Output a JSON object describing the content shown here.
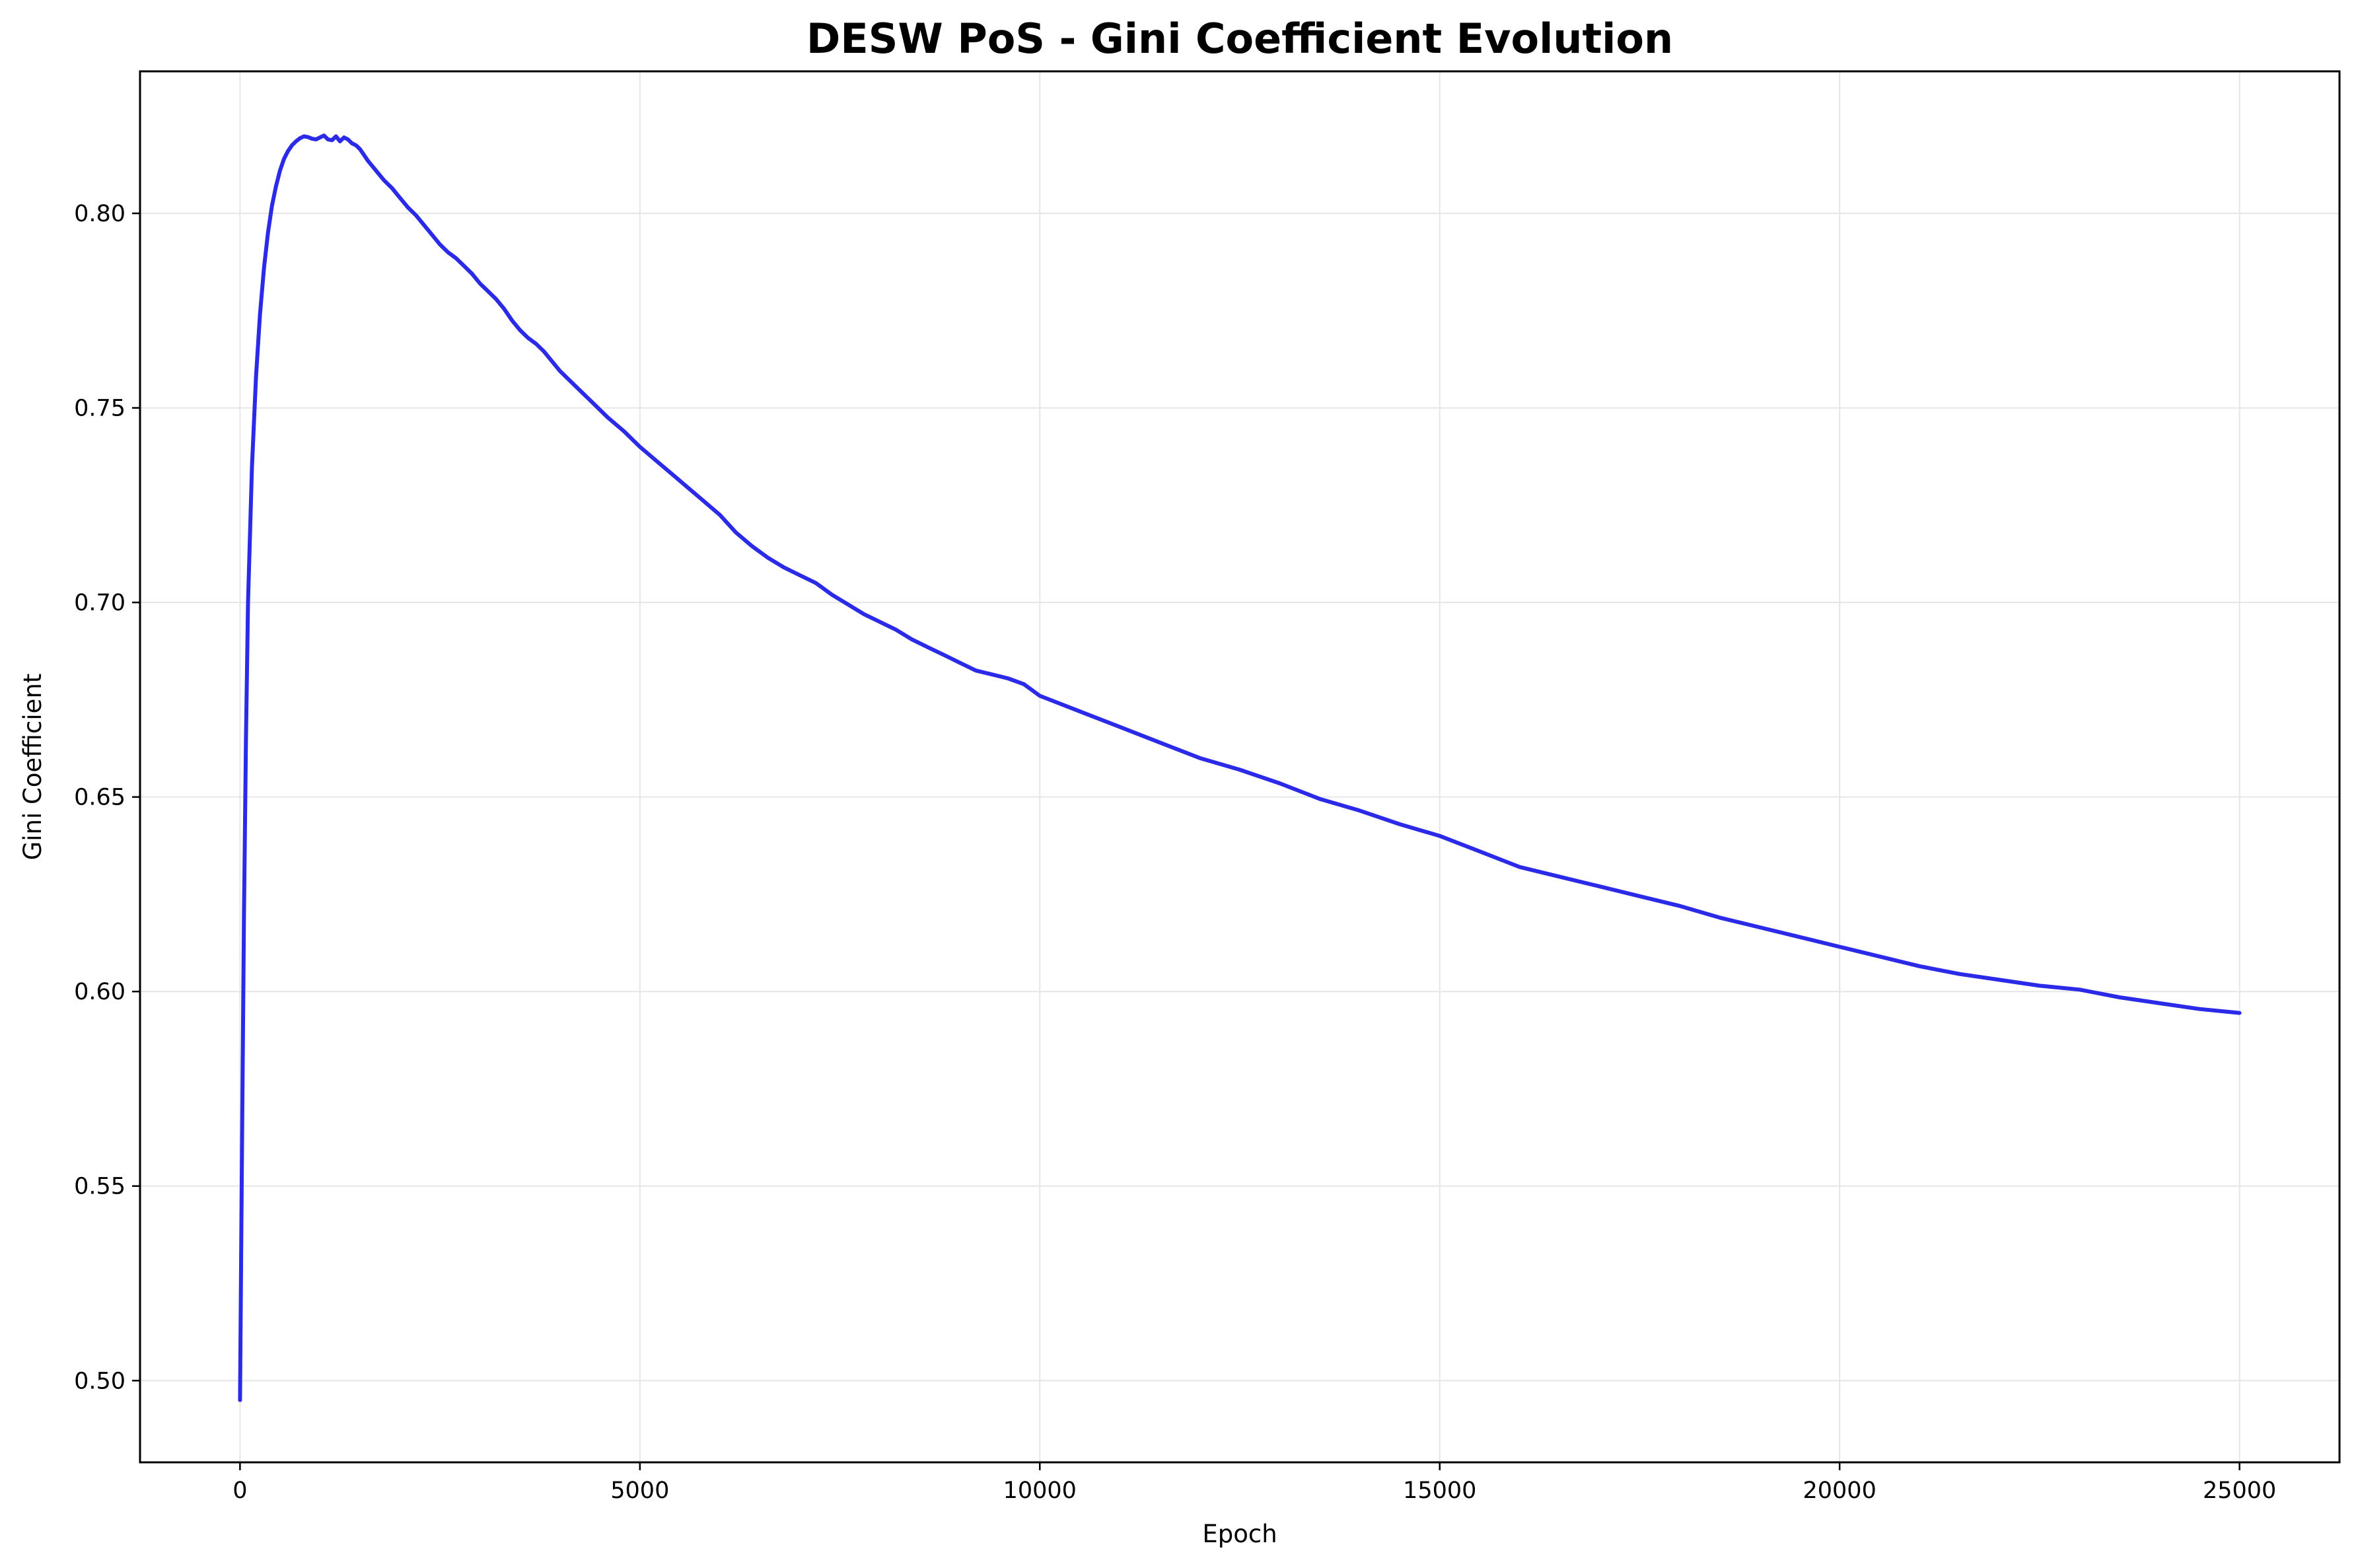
{
  "chart_data": {
    "type": "line",
    "title": "DESW PoS - Gini Coefficient Evolution",
    "xlabel": "Epoch",
    "ylabel": "Gini Coefficient",
    "xlim": [
      -1250,
      26250
    ],
    "ylim": [
      0.479,
      0.8365
    ],
    "xticks": [
      0,
      5000,
      10000,
      15000,
      20000,
      25000
    ],
    "xtick_labels": [
      "0",
      "5000",
      "10000",
      "15000",
      "20000",
      "25000"
    ],
    "yticks": [
      0.5,
      0.55,
      0.6,
      0.65,
      0.7,
      0.75,
      0.8
    ],
    "ytick_labels": [
      "0.50",
      "0.55",
      "0.60",
      "0.65",
      "0.70",
      "0.75",
      "0.80"
    ],
    "grid": true,
    "line_color": "#2a2ae8",
    "series": [
      {
        "x": [
          0,
          25,
          50,
          75,
          100,
          150,
          200,
          250,
          300,
          350,
          400,
          450,
          500,
          550,
          600,
          650,
          700,
          750,
          800,
          850,
          900,
          950,
          1000,
          1050,
          1100,
          1150,
          1200,
          1250,
          1300,
          1350,
          1400,
          1450,
          1500,
          1550,
          1600,
          1700,
          1800,
          1900,
          2000,
          2100,
          2200,
          2300,
          2400,
          2500,
          2600,
          2700,
          2800,
          2900,
          3000,
          3100,
          3200,
          3300,
          3400,
          3500,
          3600,
          3700,
          3800,
          3900,
          4000,
          4200,
          4400,
          4600,
          4800,
          5000,
          5200,
          5400,
          5600,
          5800,
          6000,
          6200,
          6400,
          6600,
          6800,
          7000,
          7200,
          7400,
          7600,
          7800,
          8000,
          8200,
          8400,
          8600,
          8800,
          9000,
          9200,
          9400,
          9600,
          9800,
          10000,
          10500,
          11000,
          11500,
          12000,
          12500,
          13000,
          13500,
          14000,
          14500,
          15000,
          15500,
          16000,
          16500,
          17000,
          17500,
          18000,
          18500,
          19000,
          19500,
          20000,
          20500,
          21000,
          21500,
          22000,
          22500,
          23000,
          23500,
          24000,
          24500,
          25000
        ],
        "y": [
          0.495,
          0.56,
          0.62,
          0.665,
          0.7,
          0.735,
          0.758,
          0.774,
          0.786,
          0.795,
          0.802,
          0.807,
          0.811,
          0.814,
          0.816,
          0.8175,
          0.8185,
          0.8193,
          0.8198,
          0.8196,
          0.8192,
          0.819,
          0.8195,
          0.82,
          0.819,
          0.8188,
          0.8198,
          0.8185,
          0.8195,
          0.819,
          0.818,
          0.8175,
          0.8165,
          0.815,
          0.8135,
          0.811,
          0.8085,
          0.8065,
          0.804,
          0.8015,
          0.7995,
          0.797,
          0.7945,
          0.792,
          0.79,
          0.7885,
          0.7865,
          0.7845,
          0.782,
          0.78,
          0.778,
          0.7755,
          0.7725,
          0.77,
          0.768,
          0.7665,
          0.7645,
          0.762,
          0.7595,
          0.7555,
          0.7515,
          0.7475,
          0.744,
          0.74,
          0.7365,
          0.733,
          0.7295,
          0.726,
          0.7225,
          0.718,
          0.7145,
          0.7115,
          0.709,
          0.707,
          0.705,
          0.702,
          0.6995,
          0.697,
          0.695,
          0.693,
          0.6905,
          0.6885,
          0.6865,
          0.6845,
          0.6825,
          0.6815,
          0.6805,
          0.679,
          0.676,
          0.672,
          0.668,
          0.664,
          0.66,
          0.657,
          0.6535,
          0.6495,
          0.6465,
          0.643,
          0.64,
          0.636,
          0.632,
          0.6295,
          0.627,
          0.6245,
          0.622,
          0.619,
          0.6165,
          0.614,
          0.6115,
          0.609,
          0.6065,
          0.6045,
          0.603,
          0.6015,
          0.6005,
          0.5985,
          0.597,
          0.5955,
          0.5945
        ]
      }
    ]
  }
}
